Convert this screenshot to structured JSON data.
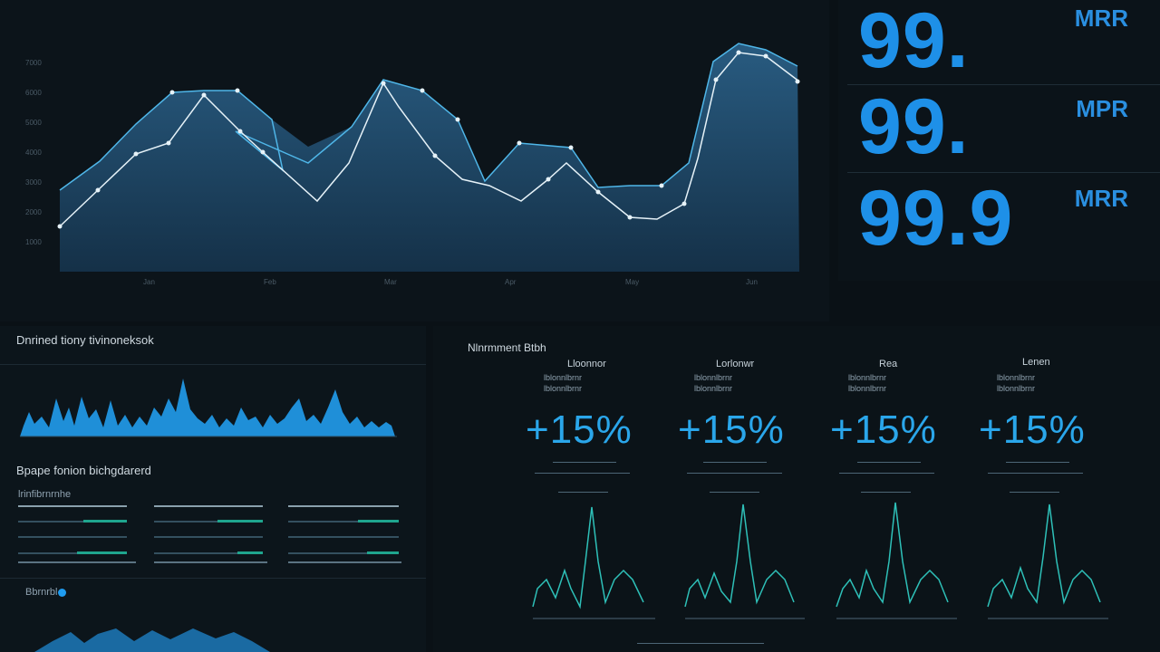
{
  "metrics": [
    {
      "value": "99.",
      "unit": "MRR"
    },
    {
      "value": "99.",
      "unit": "MPR"
    },
    {
      "value": "99.9",
      "unit": "MRR"
    }
  ],
  "left_panel": {
    "title1": "Dnrined tiony tivinoneksok",
    "title2": "Bpape fonion bichgdarerd",
    "sub_label": "lrinfibrnrnhe",
    "footer_label": "Bbrnrbl"
  },
  "right_panel": {
    "title": "Nlnrmment Btbh",
    "cards": [
      {
        "label": "Lloonnor",
        "sub": "lblonnlbrnr",
        "value": "+15%"
      },
      {
        "label": "Lorlonwr",
        "sub": "lblonnlbrnr",
        "value": "+15%"
      },
      {
        "label": "Rea",
        "sub": "lblonnlbrnr",
        "value": "+15%"
      },
      {
        "label": "Lenen",
        "sub": "lblonnlbrnr",
        "value": "+15%"
      }
    ]
  },
  "main_chart": {
    "y_ticks": [
      "7000",
      "6000",
      "5000",
      "4000",
      "3000",
      "2000",
      "1000"
    ],
    "x_ticks": [
      "Jan",
      "Feb",
      "Mar",
      "Apr",
      "May",
      "Jun"
    ],
    "colors": {
      "area": "#1e4a6b",
      "line1": "#4fb6e8",
      "line2": "#e6f2f8"
    }
  }
}
